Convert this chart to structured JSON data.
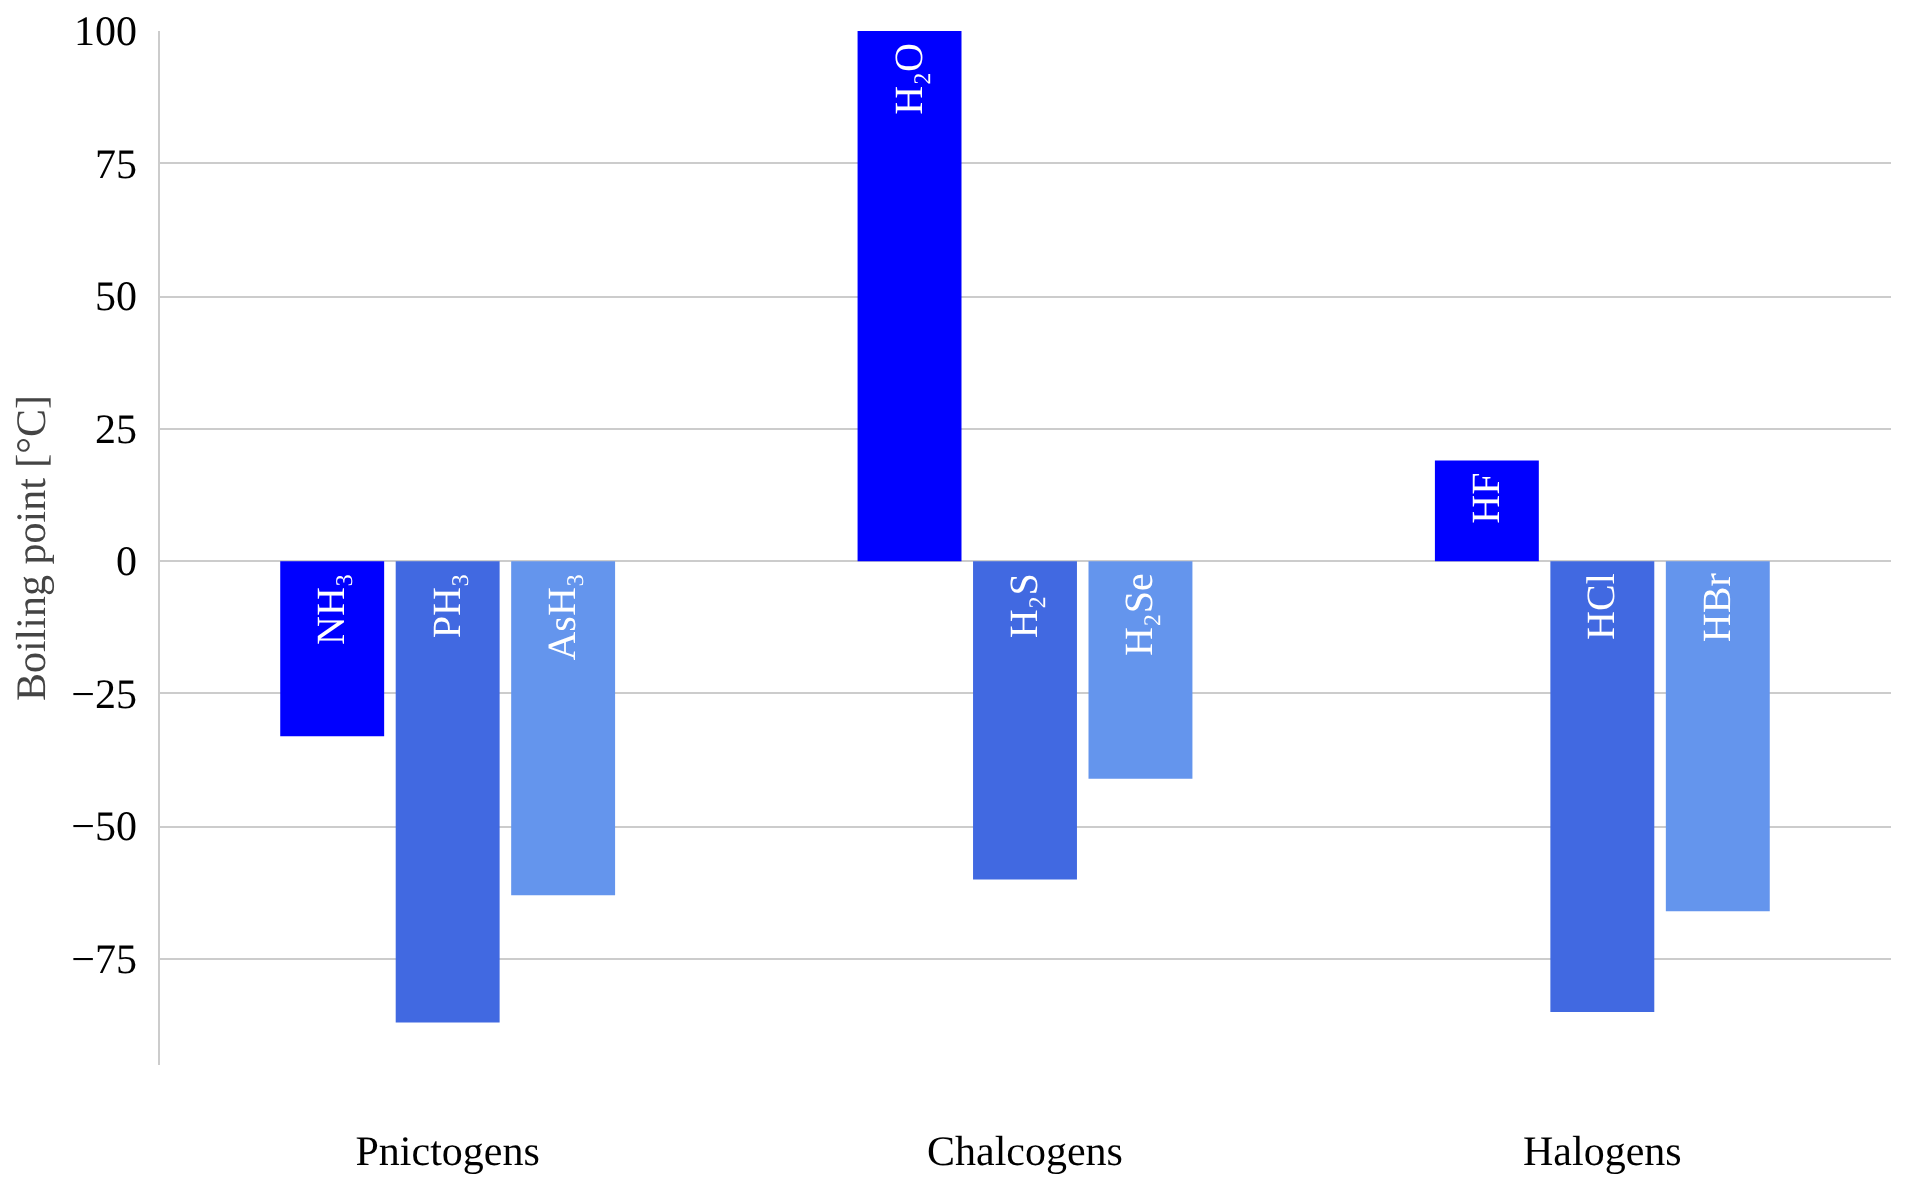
{
  "chart_data": {
    "type": "bar",
    "ylabel": "Boiling point [°C]",
    "categories": [
      "Pnictogens",
      "Chalcogens",
      "Halogens"
    ],
    "series": [
      {
        "color": "#0000ff",
        "values": [
          -33,
          100,
          19
        ]
      },
      {
        "color": "#4169e1",
        "values": [
          -87,
          -60,
          -85
        ]
      },
      {
        "color": "#6495ed",
        "values": [
          -63,
          -41,
          -66
        ]
      }
    ],
    "ylim": [
      -95,
      100
    ],
    "yticks": [
      {
        "value": -75,
        "label": "−75"
      },
      {
        "value": -50,
        "label": "−50"
      },
      {
        "value": -25,
        "label": "−25"
      },
      0,
      25,
      50,
      75,
      100
    ],
    "grid": "y",
    "annotations": [
      "NH₃",
      "PH₃",
      "AsH₃",
      "H₂O",
      "H₂S",
      "H₂Se",
      "HF",
      "HCl",
      "HBr"
    ]
  }
}
